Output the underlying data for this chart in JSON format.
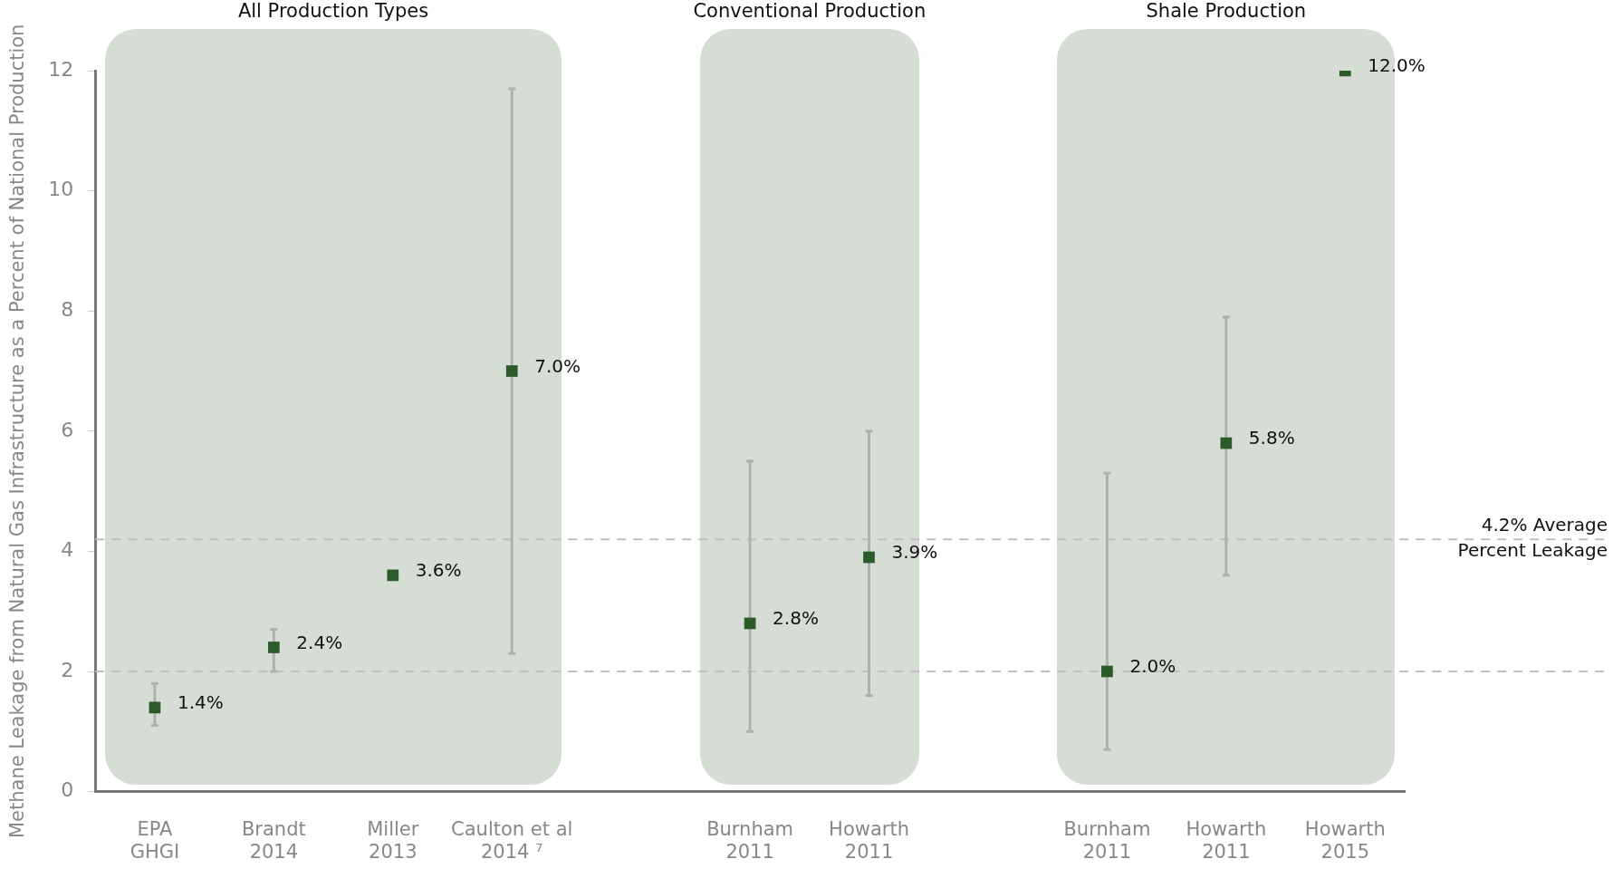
{
  "chart_data": {
    "type": "scatter",
    "ylabel": "Methane Leakage from Natural Gas Infrastructure as a Percent of National Production",
    "categories": [
      "EPA\nGHGI",
      "Brandt\n2014",
      "Miller\n2013",
      "Caulton et al\n2014 ⁷",
      null,
      "Burnham\n2011",
      "Howarth\n2011",
      null,
      "Burnham\n2011",
      "Howarth\n2011",
      "Howarth\n2015"
    ],
    "series": [
      {
        "color": "#2d5a2b",
        "values": [
          1.4,
          2.4,
          3.6,
          7.0,
          null,
          2.8,
          3.9,
          null,
          2.0,
          5.8,
          12.0
        ],
        "errors": [
          [
            1.1,
            1.8
          ],
          [
            2.0,
            2.7
          ],
          null,
          [
            2.3,
            11.7
          ],
          null,
          [
            1.0,
            5.5
          ],
          [
            1.6,
            6.0
          ],
          null,
          [
            0.7,
            5.3
          ],
          [
            3.6,
            7.9
          ],
          null
        ],
        "value_labels": [
          "1.4%",
          "2.4%",
          "3.6%",
          "7.0%",
          null,
          "2.8%",
          "3.9%",
          null,
          "2.0%",
          "5.8%",
          "12.0%"
        ]
      }
    ],
    "marker": "square",
    "ylim": [
      0,
      12
    ],
    "yticks": [
      0,
      2,
      4,
      6,
      8,
      10,
      12
    ],
    "ref_lines": [
      {
        "axis": "y",
        "value": 4.2,
        "label": "4.2% Average\nPercent Leakage",
        "color": "#c0c0c0",
        "line_style": "dashed"
      },
      {
        "axis": "y",
        "value": 2.0,
        "color": "#c0c0c0",
        "line_style": "dashed"
      }
    ],
    "annotations": [
      "All Production Types",
      "Conventional Production",
      "Shale Production"
    ]
  }
}
